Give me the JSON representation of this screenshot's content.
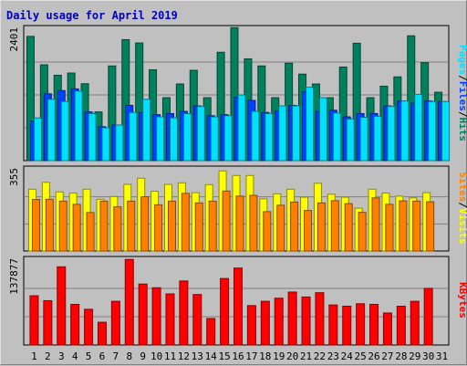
{
  "window": {
    "title": "Daily usage for April 2019"
  },
  "colors": {
    "background": "#c0c0c0",
    "title": "#0000c0",
    "hits": "#00805c",
    "files": "#0040ff",
    "pages": "#00e0ff",
    "visits": "#ffff00",
    "sites": "#ff8000",
    "kbytes": "#ff0000",
    "weekend_label": "#00805c"
  },
  "chart_data": [
    {
      "type": "bar",
      "panel": "hits-files-pages",
      "y_max_label": "2401",
      "ylim": [
        0,
        2401
      ],
      "legend": [
        "Pages",
        "/",
        "Files",
        "/",
        "Hits"
      ],
      "categories": [
        "1",
        "2",
        "3",
        "4",
        "5",
        "6",
        "7",
        "8",
        "9",
        "10",
        "11",
        "12",
        "13",
        "14",
        "15",
        "16",
        "17",
        "18",
        "19",
        "20",
        "21",
        "22",
        "23",
        "24",
        "25",
        "26",
        "27",
        "28",
        "29",
        "30",
        "31"
      ],
      "series": [
        {
          "name": "Hits",
          "values": [
            2270,
            1750,
            1560,
            1600,
            1405,
            890,
            1730,
            2210,
            2150,
            1660,
            1150,
            1400,
            1650,
            1150,
            1980,
            2430,
            1860,
            1730,
            1150,
            1780,
            1580,
            1400,
            1150,
            1710,
            2145,
            1150,
            1360,
            1530,
            2280,
            1790,
            1250
          ]
        },
        {
          "name": "Files",
          "values": [
            720,
            1220,
            1280,
            1310,
            890,
            620,
            650,
            1010,
            880,
            840,
            860,
            900,
            1000,
            820,
            840,
            1160,
            1100,
            880,
            910,
            1010,
            1260,
            900,
            920,
            800,
            860,
            860,
            1000,
            1090,
            1050,
            1090,
            1080
          ]
        },
        {
          "name": "Pages",
          "values": [
            780,
            1120,
            1080,
            1270,
            860,
            600,
            650,
            880,
            1120,
            800,
            780,
            860,
            990,
            800,
            820,
            1200,
            900,
            860,
            1000,
            1000,
            1340,
            1150,
            870,
            760,
            790,
            810,
            990,
            1090,
            1210,
            1080,
            1080
          ]
        }
      ]
    },
    {
      "type": "bar",
      "panel": "visits-sites",
      "y_max_label": "355",
      "ylim": [
        0,
        355
      ],
      "legend": [
        "Sites",
        "/",
        "Visits"
      ],
      "categories": [
        "1",
        "2",
        "3",
        "4",
        "5",
        "6",
        "7",
        "8",
        "9",
        "10",
        "11",
        "12",
        "13",
        "14",
        "15",
        "16",
        "17",
        "18",
        "19",
        "20",
        "21",
        "22",
        "23",
        "24",
        "25",
        "26",
        "27",
        "28",
        "29",
        "30",
        "31"
      ],
      "series": [
        {
          "name": "Visits",
          "values": [
            270,
            300,
            258,
            253,
            270,
            226,
            238,
            291,
            318,
            261,
            291,
            298,
            255,
            290,
            350,
            330,
            330,
            228,
            250,
            270,
            235,
            296,
            248,
            235,
            187,
            270,
            253,
            240,
            232,
            255,
            0
          ]
        },
        {
          "name": "Sites",
          "values": [
            225,
            226,
            218,
            204,
            168,
            218,
            193,
            218,
            237,
            202,
            218,
            252,
            210,
            218,
            262,
            240,
            243,
            172,
            200,
            214,
            177,
            210,
            220,
            207,
            169,
            232,
            204,
            219,
            218,
            215,
            0
          ]
        }
      ]
    },
    {
      "type": "bar",
      "panel": "kbytes",
      "y_max_label": "137877",
      "ylim": [
        0,
        137877
      ],
      "legend": [
        "KBytes"
      ],
      "categories": [
        "1",
        "2",
        "3",
        "4",
        "5",
        "6",
        "7",
        "8",
        "9",
        "10",
        "11",
        "12",
        "13",
        "14",
        "15",
        "16",
        "17",
        "18",
        "19",
        "20",
        "21",
        "22",
        "23",
        "24",
        "25",
        "26",
        "27",
        "28",
        "29",
        "30",
        "31"
      ],
      "series": [
        {
          "name": "KBytes",
          "values": [
            80000,
            72000,
            127000,
            66000,
            58000,
            37000,
            71000,
            139000,
            99000,
            93000,
            83000,
            104000,
            82000,
            43000,
            108000,
            125000,
            64000,
            71000,
            76000,
            86000,
            78000,
            85000,
            65000,
            63000,
            67000,
            66000,
            52000,
            63000,
            71000,
            92000,
            0
          ]
        }
      ]
    }
  ],
  "x_axis": {
    "labels": [
      "1",
      "2",
      "3",
      "4",
      "5",
      "6",
      "7",
      "8",
      "9",
      "10",
      "11",
      "12",
      "13",
      "14",
      "15",
      "16",
      "17",
      "18",
      "19",
      "20",
      "21",
      "22",
      "23",
      "24",
      "25",
      "26",
      "27",
      "28",
      "29",
      "30",
      "31"
    ],
    "weekend": [
      6,
      7,
      13,
      14,
      20,
      21,
      27,
      28
    ]
  }
}
